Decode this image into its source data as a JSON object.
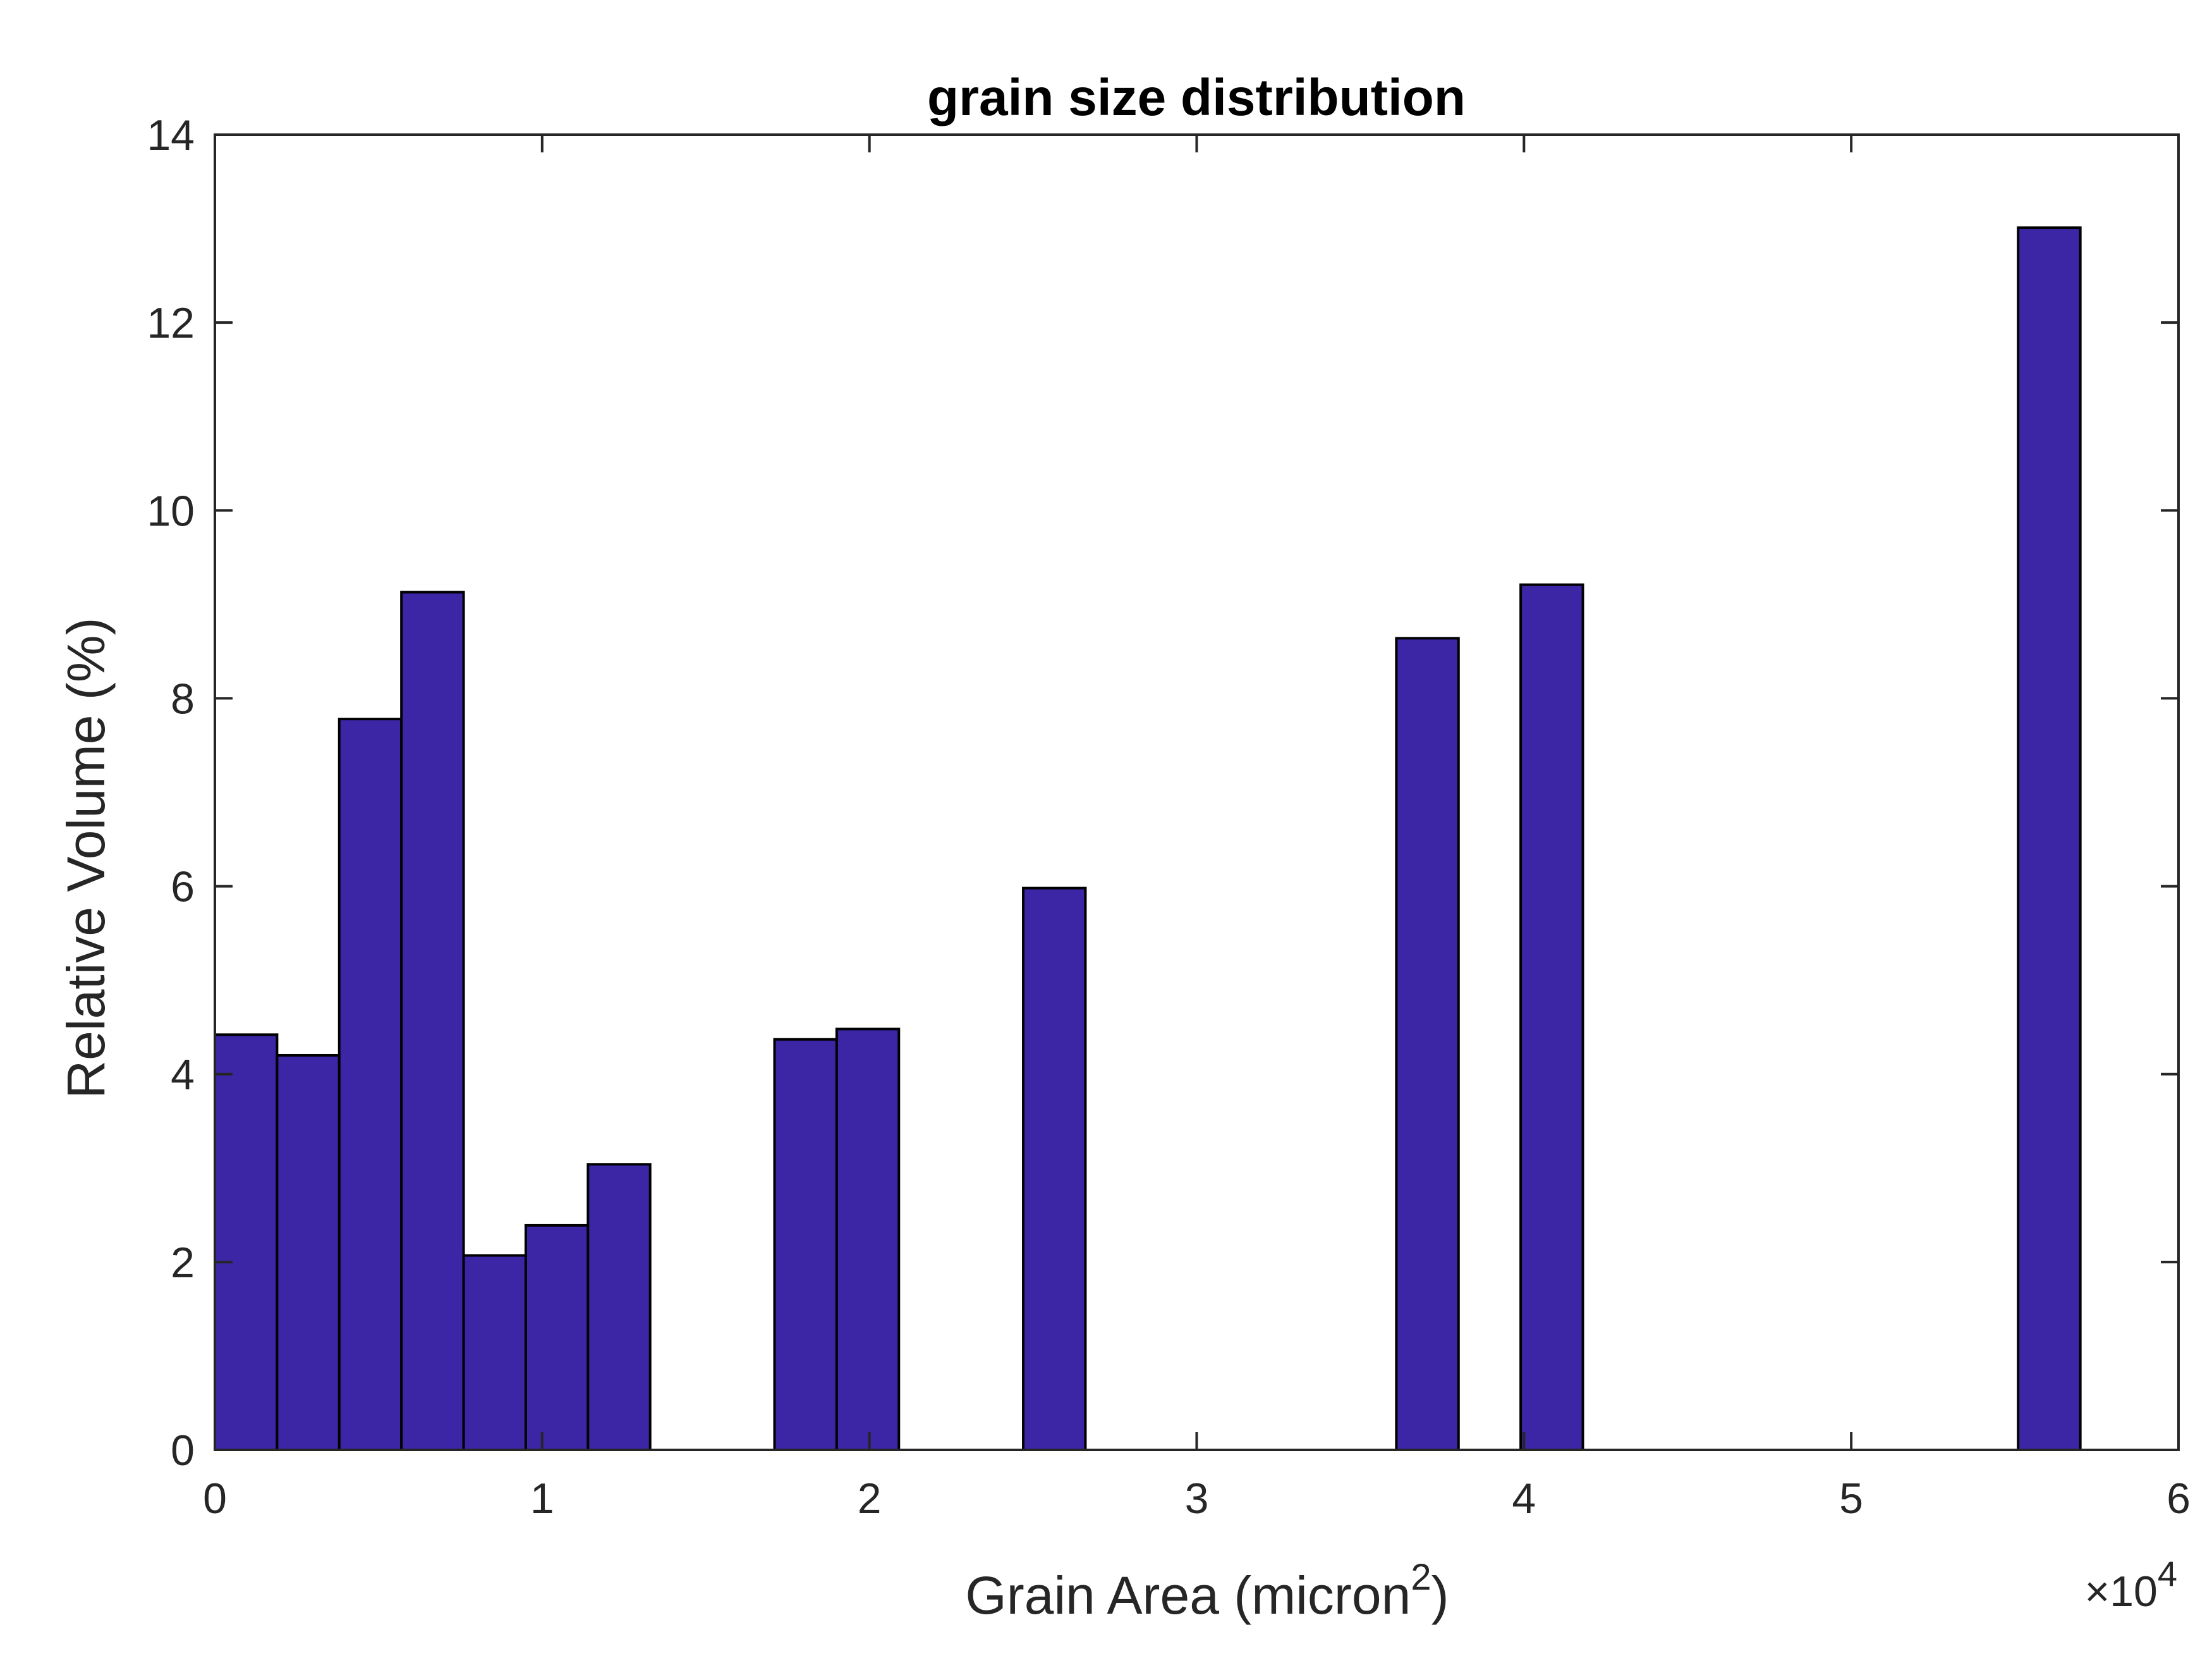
{
  "chart_data": {
    "type": "bar",
    "title": "grain size distribution",
    "xlabel": "Grain Area (micron",
    "xlabel_sup": "2",
    "xlabel_end": ")",
    "ylabel": "Relative Volume (%)",
    "x_exponent": {
      "base": "×10",
      "power": "4"
    },
    "xlim": [
      0,
      6
    ],
    "ylim": [
      0,
      14
    ],
    "xticks": [
      "0",
      "1",
      "2",
      "3",
      "4",
      "5",
      "6"
    ],
    "yticks": [
      "0",
      "2",
      "4",
      "6",
      "8",
      "10",
      "12",
      "14"
    ],
    "bin_width": 0.19,
    "bar_color": "#3C26A6",
    "edge_color": "#000000",
    "grid": false,
    "legend": false,
    "bars": [
      {
        "x0": 0.0,
        "value": 4.42
      },
      {
        "x0": 0.19,
        "value": 4.2
      },
      {
        "x0": 0.38,
        "value": 7.78
      },
      {
        "x0": 0.57,
        "value": 9.13
      },
      {
        "x0": 0.76,
        "value": 2.07
      },
      {
        "x0": 0.95,
        "value": 2.39
      },
      {
        "x0": 1.14,
        "value": 3.04
      },
      {
        "x0": 1.71,
        "value": 4.37
      },
      {
        "x0": 1.9,
        "value": 4.48
      },
      {
        "x0": 2.47,
        "value": 5.98
      },
      {
        "x0": 3.61,
        "value": 8.64
      },
      {
        "x0": 3.99,
        "value": 9.21
      },
      {
        "x0": 5.51,
        "value": 13.01
      }
    ]
  }
}
